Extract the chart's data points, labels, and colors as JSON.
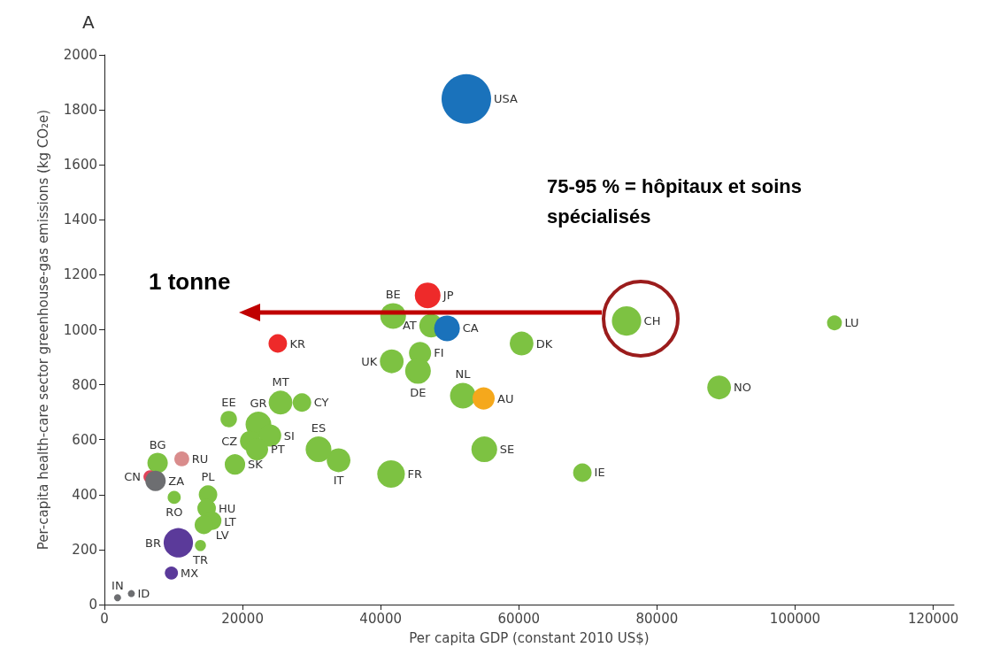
{
  "chart_data": {
    "type": "bubble",
    "title": "A",
    "xlabel": "Per capita GDP (constant 2010 US$)",
    "ylabel": "Per-capita health-care sector greenhouse-gas emissions (kg CO₂e)",
    "xlim": [
      0,
      123000
    ],
    "xticks": [
      0,
      20000,
      40000,
      60000,
      80000,
      100000,
      120000
    ],
    "ylim": [
      0,
      2000
    ],
    "yticks": [
      0,
      200,
      400,
      600,
      800,
      1000,
      1200,
      1400,
      1600,
      1800,
      2000
    ],
    "grid": false,
    "legend": false,
    "marker": "circle",
    "annotations": [
      "1 tonne",
      "75-95 % = hôpitaux et soins spécialisés"
    ],
    "series": [
      {
        "name": "USA",
        "color": "#1a72bb",
        "x": [
          52400
        ],
        "values": [
          1840
        ],
        "sizes": [
          1
        ]
      },
      {
        "name": "JP",
        "color": "#ee2a2a",
        "x": [
          46800
        ],
        "values": [
          1125
        ],
        "sizes": [
          0.27
        ]
      },
      {
        "name": "BE",
        "color": "#7dc242",
        "x": [
          41800
        ],
        "values": [
          1050
        ],
        "sizes": [
          0.27
        ]
      },
      {
        "name": "AT",
        "color": "#7dc242",
        "x": [
          47300
        ],
        "values": [
          1015
        ],
        "sizes": [
          0.23
        ]
      },
      {
        "name": "CA",
        "color": "#1a72bb",
        "x": [
          49600
        ],
        "values": [
          1005
        ],
        "sizes": [
          0.27
        ]
      },
      {
        "name": "UK",
        "color": "#7dc242",
        "x": [
          41600
        ],
        "values": [
          885
        ],
        "sizes": [
          0.23
        ]
      },
      {
        "name": "FI",
        "color": "#7dc242",
        "x": [
          45700
        ],
        "values": [
          915
        ],
        "sizes": [
          0.2
        ]
      },
      {
        "name": "DE",
        "color": "#7dc242",
        "x": [
          45400
        ],
        "values": [
          850
        ],
        "sizes": [
          0.27
        ]
      },
      {
        "name": "NL",
        "color": "#7dc242",
        "x": [
          51900
        ],
        "values": [
          760
        ],
        "sizes": [
          0.27
        ]
      },
      {
        "name": "AU",
        "color": "#f5a81c",
        "x": [
          54900
        ],
        "values": [
          750
        ],
        "sizes": [
          0.2
        ]
      },
      {
        "name": "DK",
        "color": "#7dc242",
        "x": [
          60400
        ],
        "values": [
          950
        ],
        "sizes": [
          0.23
        ]
      },
      {
        "name": "SE",
        "color": "#7dc242",
        "x": [
          55000
        ],
        "values": [
          565
        ],
        "sizes": [
          0.27
        ]
      },
      {
        "name": "FR",
        "color": "#7dc242",
        "x": [
          41500
        ],
        "values": [
          475
        ],
        "sizes": [
          0.31
        ]
      },
      {
        "name": "IT",
        "color": "#7dc242",
        "x": [
          33900
        ],
        "values": [
          525
        ],
        "sizes": [
          0.23
        ]
      },
      {
        "name": "CH",
        "color": "#7dc242",
        "x": [
          75600
        ],
        "values": [
          1032
        ],
        "sizes": [
          0.35
        ]
      },
      {
        "name": "LU",
        "color": "#7dc242",
        "x": [
          105700
        ],
        "values": [
          1025
        ],
        "sizes": [
          0.09
        ]
      },
      {
        "name": "NO",
        "color": "#7dc242",
        "x": [
          89000
        ],
        "values": [
          790
        ],
        "sizes": [
          0.23
        ]
      },
      {
        "name": "IE",
        "color": "#7dc242",
        "x": [
          69200
        ],
        "values": [
          480
        ],
        "sizes": [
          0.14
        ]
      },
      {
        "name": "KR",
        "color": "#ee2a2a",
        "x": [
          25100
        ],
        "values": [
          950
        ],
        "sizes": [
          0.14
        ]
      },
      {
        "name": "MT",
        "color": "#7dc242",
        "x": [
          25500
        ],
        "values": [
          735
        ],
        "sizes": [
          0.23
        ]
      },
      {
        "name": "CY",
        "color": "#7dc242",
        "x": [
          28600
        ],
        "values": [
          735
        ],
        "sizes": [
          0.14
        ]
      },
      {
        "name": "EE",
        "color": "#7dc242",
        "x": [
          18000
        ],
        "values": [
          675
        ],
        "sizes": [
          0.11
        ]
      },
      {
        "name": "GR",
        "color": "#7dc242",
        "x": [
          22300
        ],
        "values": [
          655
        ],
        "sizes": [
          0.27
        ]
      },
      {
        "name": "SI",
        "color": "#7dc242",
        "x": [
          24000
        ],
        "values": [
          615
        ],
        "sizes": [
          0.2
        ]
      },
      {
        "name": "CZ",
        "color": "#7dc242",
        "x": [
          21100
        ],
        "values": [
          595
        ],
        "sizes": [
          0.17
        ]
      },
      {
        "name": "PT",
        "color": "#7dc242",
        "x": [
          22100
        ],
        "values": [
          565
        ],
        "sizes": [
          0.2
        ]
      },
      {
        "name": "ES",
        "color": "#7dc242",
        "x": [
          31000
        ],
        "values": [
          565
        ],
        "sizes": [
          0.27
        ]
      },
      {
        "name": "SK",
        "color": "#7dc242",
        "x": [
          18900
        ],
        "values": [
          510
        ],
        "sizes": [
          0.17
        ]
      },
      {
        "name": "BG",
        "color": "#7dc242",
        "x": [
          7700
        ],
        "values": [
          515
        ],
        "sizes": [
          0.17
        ]
      },
      {
        "name": "RU",
        "color": "#d98c8c",
        "x": [
          11200
        ],
        "values": [
          530
        ],
        "sizes": [
          0.09
        ]
      },
      {
        "name": "CN",
        "color": "#e0435a",
        "x": [
          6600
        ],
        "values": [
          465
        ],
        "sizes": [
          0.07
        ]
      },
      {
        "name": "ZA",
        "color": "#6d6e71",
        "x": [
          7400
        ],
        "values": [
          450
        ],
        "sizes": [
          0.17
        ]
      },
      {
        "name": "PL",
        "color": "#7dc242",
        "x": [
          15000
        ],
        "values": [
          400
        ],
        "sizes": [
          0.14
        ]
      },
      {
        "name": "RO",
        "color": "#7dc242",
        "x": [
          10100
        ],
        "values": [
          390
        ],
        "sizes": [
          0.07
        ]
      },
      {
        "name": "HU",
        "color": "#7dc242",
        "x": [
          14800
        ],
        "values": [
          350
        ],
        "sizes": [
          0.14
        ]
      },
      {
        "name": "LT",
        "color": "#7dc242",
        "x": [
          15600
        ],
        "values": [
          305
        ],
        "sizes": [
          0.14
        ]
      },
      {
        "name": "LV",
        "color": "#7dc242",
        "x": [
          14400
        ],
        "values": [
          290
        ],
        "sizes": [
          0.14
        ]
      },
      {
        "name": "BR",
        "color": "#5b3a9a",
        "x": [
          10700
        ],
        "values": [
          225
        ],
        "sizes": [
          0.35
        ]
      },
      {
        "name": "TR",
        "color": "#7dc242",
        "x": [
          13900
        ],
        "values": [
          215
        ],
        "sizes": [
          0.05
        ]
      },
      {
        "name": "MX",
        "color": "#5b3a9a",
        "x": [
          9700
        ],
        "values": [
          115
        ],
        "sizes": [
          0.07
        ]
      },
      {
        "name": "IN",
        "color": "#6d6e71",
        "x": [
          1900
        ],
        "values": [
          25
        ],
        "sizes": [
          0.02
        ]
      },
      {
        "name": "ID",
        "color": "#6d6e71",
        "x": [
          3900
        ],
        "values": [
          40
        ],
        "sizes": [
          0.02
        ]
      }
    ]
  }
}
